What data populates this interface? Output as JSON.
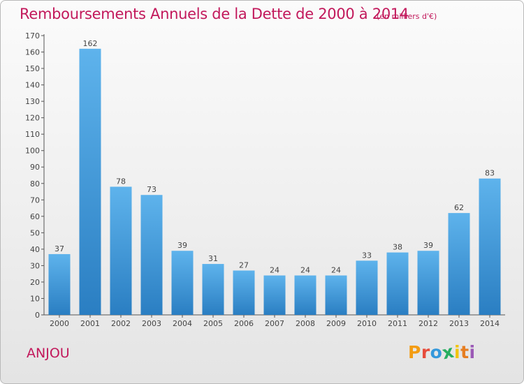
{
  "header": {
    "title": "Remboursements Annuels de la Dette de 2000 à 2014",
    "unit": "(en milliers d'€)"
  },
  "footer": {
    "place": "ANJOU",
    "logo_text": "Proxiti"
  },
  "colors": {
    "accent": "#c2185b",
    "bar_top": "#5eb3ec",
    "bar_bottom": "#2a7ec2",
    "logo_letters": [
      "#f39c12",
      "#e74c3c",
      "#3498db",
      "#27ae60",
      "#f1c40f",
      "#e67e22",
      "#9b59b6"
    ]
  },
  "chart_data": {
    "type": "bar",
    "title": "Remboursements Annuels de la Dette de 2000 à 2014",
    "xlabel": "",
    "ylabel": "",
    "categories": [
      "2000",
      "2001",
      "2002",
      "2003",
      "2004",
      "2005",
      "2006",
      "2007",
      "2008",
      "2009",
      "2010",
      "2011",
      "2012",
      "2013",
      "2014"
    ],
    "values": [
      37,
      162,
      78,
      73,
      39,
      31,
      27,
      24,
      24,
      24,
      33,
      38,
      39,
      62,
      83
    ],
    "ylim": [
      0,
      170
    ],
    "yticks": [
      0,
      10,
      20,
      30,
      40,
      50,
      60,
      70,
      80,
      90,
      100,
      110,
      120,
      130,
      140,
      150,
      160,
      170
    ],
    "grid": false,
    "legend": "none"
  }
}
